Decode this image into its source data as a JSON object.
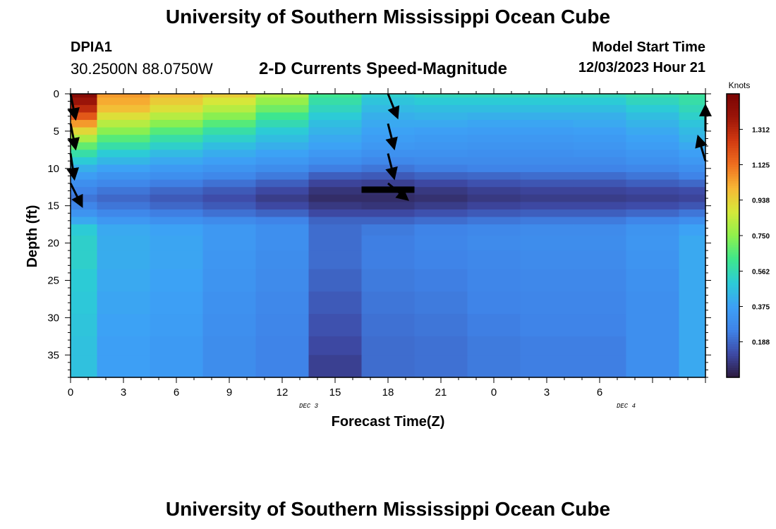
{
  "header": {
    "title": "University of Southern Mississippi Ocean Cube",
    "station_id": "DPIA1",
    "station_coords": "30.2500N  88.0750W",
    "subtitle": "2-D Currents Speed-Magnitude",
    "model_start_label": "Model Start Time",
    "model_start_time": "12/03/2023 Hour 21"
  },
  "footer": {
    "title": "University of Southern Mississippi Ocean Cube"
  },
  "colors": {
    "arrow": "#000000",
    "frame": "#000000",
    "colormap": [
      "#2c1a3f",
      "#3e4aa6",
      "#3f84e8",
      "#3da0f6",
      "#2ccbd6",
      "#3ee78c",
      "#8ff04c",
      "#d5e93a",
      "#f7b735",
      "#ef6f1f",
      "#d23a11",
      "#9b1509",
      "#7a0403"
    ]
  },
  "chart_data": {
    "type": "heatmap",
    "xlabel": "Forecast Time(Z)",
    "ylabel": "Depth (ft)",
    "colorbar_label": "Knots",
    "xlim": [
      0,
      36
    ],
    "ylim": [
      0,
      38
    ],
    "x_ticks": [
      "0",
      "3",
      "6",
      "9",
      "12",
      "15",
      "18",
      "21",
      "0",
      "3",
      "6"
    ],
    "date_labels": [
      {
        "label": "DEC 3",
        "at_hour": 13.5
      },
      {
        "label": "DEC 4",
        "at_hour": 31.5
      }
    ],
    "y_ticks": [
      "0",
      "5",
      "10",
      "15",
      "20",
      "25",
      "30",
      "35"
    ],
    "colorbar_ticks": [
      "1.312",
      "1.125",
      "0.938",
      "0.750",
      "0.562",
      "0.375",
      "0.188"
    ],
    "colorbar_range": [
      0.0,
      1.5
    ],
    "time_hours": [
      0,
      3,
      6,
      9,
      12,
      15,
      18,
      21,
      24,
      27,
      30,
      33,
      36
    ],
    "depth_levels_ft": [
      0,
      1,
      2,
      3,
      4,
      5,
      6,
      7,
      8,
      9,
      10,
      11,
      12,
      13,
      14,
      15,
      16,
      17,
      18,
      20,
      22,
      25,
      28,
      31,
      34,
      36,
      38
    ],
    "speed_knots": [
      [
        1.45,
        1.05,
        1.0,
        0.95,
        0.82,
        0.62,
        0.52,
        0.55,
        0.55,
        0.55,
        0.55,
        0.58,
        0.6
      ],
      [
        1.38,
        1.02,
        0.95,
        0.88,
        0.76,
        0.58,
        0.48,
        0.5,
        0.5,
        0.5,
        0.5,
        0.54,
        0.58
      ],
      [
        1.3,
        0.98,
        0.9,
        0.82,
        0.7,
        0.54,
        0.45,
        0.46,
        0.46,
        0.46,
        0.46,
        0.5,
        0.55
      ],
      [
        1.18,
        0.9,
        0.82,
        0.74,
        0.62,
        0.5,
        0.42,
        0.43,
        0.42,
        0.42,
        0.42,
        0.46,
        0.52
      ],
      [
        1.05,
        0.82,
        0.74,
        0.66,
        0.56,
        0.46,
        0.4,
        0.4,
        0.39,
        0.39,
        0.4,
        0.43,
        0.48
      ],
      [
        0.92,
        0.74,
        0.66,
        0.58,
        0.5,
        0.43,
        0.38,
        0.37,
        0.36,
        0.36,
        0.37,
        0.4,
        0.45
      ],
      [
        0.8,
        0.66,
        0.58,
        0.52,
        0.46,
        0.4,
        0.36,
        0.35,
        0.34,
        0.34,
        0.35,
        0.38,
        0.43
      ],
      [
        0.68,
        0.58,
        0.52,
        0.46,
        0.42,
        0.38,
        0.34,
        0.33,
        0.32,
        0.32,
        0.33,
        0.36,
        0.4
      ],
      [
        0.58,
        0.5,
        0.45,
        0.41,
        0.38,
        0.34,
        0.31,
        0.31,
        0.3,
        0.3,
        0.31,
        0.33,
        0.37
      ],
      [
        0.5,
        0.44,
        0.4,
        0.37,
        0.34,
        0.3,
        0.27,
        0.28,
        0.28,
        0.28,
        0.28,
        0.31,
        0.34
      ],
      [
        0.42,
        0.38,
        0.35,
        0.32,
        0.29,
        0.24,
        0.22,
        0.24,
        0.25,
        0.25,
        0.25,
        0.27,
        0.3
      ],
      [
        0.36,
        0.32,
        0.3,
        0.27,
        0.23,
        0.17,
        0.16,
        0.18,
        0.19,
        0.2,
        0.2,
        0.22,
        0.25
      ],
      [
        0.3,
        0.27,
        0.24,
        0.21,
        0.17,
        0.11,
        0.1,
        0.12,
        0.14,
        0.15,
        0.15,
        0.17,
        0.19
      ],
      [
        0.25,
        0.22,
        0.19,
        0.16,
        0.12,
        0.07,
        0.06,
        0.08,
        0.1,
        0.11,
        0.11,
        0.12,
        0.13
      ],
      [
        0.22,
        0.19,
        0.16,
        0.13,
        0.09,
        0.05,
        0.05,
        0.06,
        0.08,
        0.09,
        0.09,
        0.1,
        0.11
      ],
      [
        0.26,
        0.22,
        0.19,
        0.16,
        0.12,
        0.08,
        0.07,
        0.09,
        0.11,
        0.12,
        0.12,
        0.13,
        0.15
      ],
      [
        0.32,
        0.27,
        0.24,
        0.21,
        0.18,
        0.12,
        0.12,
        0.14,
        0.16,
        0.17,
        0.17,
        0.19,
        0.22
      ],
      [
        0.4,
        0.34,
        0.31,
        0.28,
        0.25,
        0.18,
        0.18,
        0.2,
        0.22,
        0.23,
        0.23,
        0.26,
        0.3
      ],
      [
        0.5,
        0.4,
        0.38,
        0.34,
        0.3,
        0.2,
        0.23,
        0.25,
        0.27,
        0.28,
        0.28,
        0.32,
        0.38
      ],
      [
        0.52,
        0.41,
        0.39,
        0.34,
        0.3,
        0.2,
        0.24,
        0.26,
        0.28,
        0.29,
        0.29,
        0.33,
        0.4
      ],
      [
        0.52,
        0.41,
        0.39,
        0.33,
        0.29,
        0.2,
        0.24,
        0.25,
        0.27,
        0.28,
        0.28,
        0.32,
        0.4
      ],
      [
        0.5,
        0.4,
        0.38,
        0.32,
        0.28,
        0.18,
        0.23,
        0.24,
        0.26,
        0.27,
        0.27,
        0.31,
        0.4
      ],
      [
        0.49,
        0.39,
        0.37,
        0.31,
        0.27,
        0.16,
        0.22,
        0.23,
        0.25,
        0.26,
        0.26,
        0.3,
        0.4
      ],
      [
        0.48,
        0.38,
        0.36,
        0.3,
        0.26,
        0.14,
        0.21,
        0.22,
        0.24,
        0.25,
        0.25,
        0.3,
        0.4
      ],
      [
        0.47,
        0.37,
        0.35,
        0.29,
        0.25,
        0.12,
        0.2,
        0.21,
        0.23,
        0.24,
        0.24,
        0.3,
        0.4
      ],
      [
        0.47,
        0.37,
        0.35,
        0.29,
        0.25,
        0.1,
        0.2,
        0.21,
        0.23,
        0.24,
        0.24,
        0.3,
        0.4
      ],
      [
        0.47,
        0.37,
        0.35,
        0.29,
        0.25,
        0.1,
        0.2,
        0.21,
        0.23,
        0.24,
        0.24,
        0.3,
        0.4
      ]
    ],
    "current_vectors": [
      {
        "hour": 0,
        "depth_ft": 0,
        "east": 0.2,
        "north": -1.0
      },
      {
        "hour": 0,
        "depth_ft": 4,
        "east": 0.2,
        "north": -1.0
      },
      {
        "hour": 0,
        "depth_ft": 8,
        "east": 0.15,
        "north": -1.0
      },
      {
        "hour": 0,
        "depth_ft": 12,
        "east": 0.45,
        "north": -0.9
      },
      {
        "hour": 18,
        "depth_ft": 0,
        "east": 0.4,
        "north": -1.0
      },
      {
        "hour": 18,
        "depth_ft": 4,
        "east": 0.25,
        "north": -1.0
      },
      {
        "hour": 18,
        "depth_ft": 8,
        "east": 0.25,
        "north": -1.0
      },
      {
        "hour": 18,
        "depth_ft": 12,
        "east": 0.6,
        "north": -0.5
      },
      {
        "hour": 36,
        "depth_ft": 5,
        "east": 0.0,
        "north": 1.0
      },
      {
        "hour": 36,
        "depth_ft": 9,
        "east": -0.3,
        "north": 1.0
      }
    ],
    "masked_segment": {
      "hour_start": 16.5,
      "hour_end": 19.5,
      "depth_ft": 12.8
    }
  }
}
